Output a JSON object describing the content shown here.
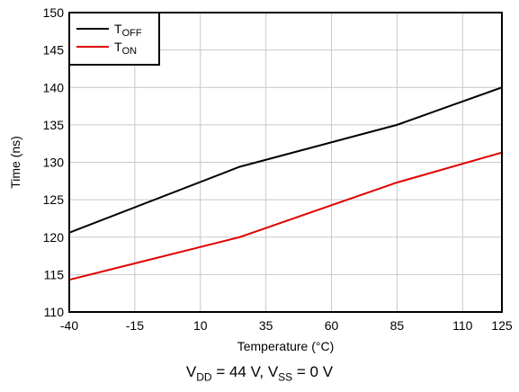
{
  "chart_data": {
    "type": "line",
    "xlabel": "Temperature (°C)",
    "ylabel": "Time (ns)",
    "x_ticks": [
      -40,
      -15,
      10,
      35,
      60,
      85,
      110,
      125
    ],
    "y_ticks": [
      110,
      115,
      120,
      125,
      130,
      135,
      140,
      145,
      150
    ],
    "xlim": [
      -40,
      125
    ],
    "ylim": [
      110,
      150
    ],
    "grid": true,
    "legend_position": "top-left",
    "series": [
      {
        "name": "TOFF",
        "legend_main": "T",
        "legend_sub": "OFF",
        "color": "#000000",
        "x": [
          -40,
          25,
          85,
          125
        ],
        "y": [
          120.6,
          129.4,
          135.0,
          140.0
        ]
      },
      {
        "name": "TON",
        "legend_main": "T",
        "legend_sub": "ON",
        "color": "#e00000",
        "x": [
          -40,
          25,
          85,
          125
        ],
        "y": [
          114.3,
          120.0,
          127.3,
          131.3
        ]
      }
    ]
  },
  "caption": {
    "v1": "V",
    "v1_sub": "DD",
    "v1_value": " = 44 V, ",
    "v2": "V",
    "v2_sub": "SS",
    "v2_value": " = 0 V"
  }
}
